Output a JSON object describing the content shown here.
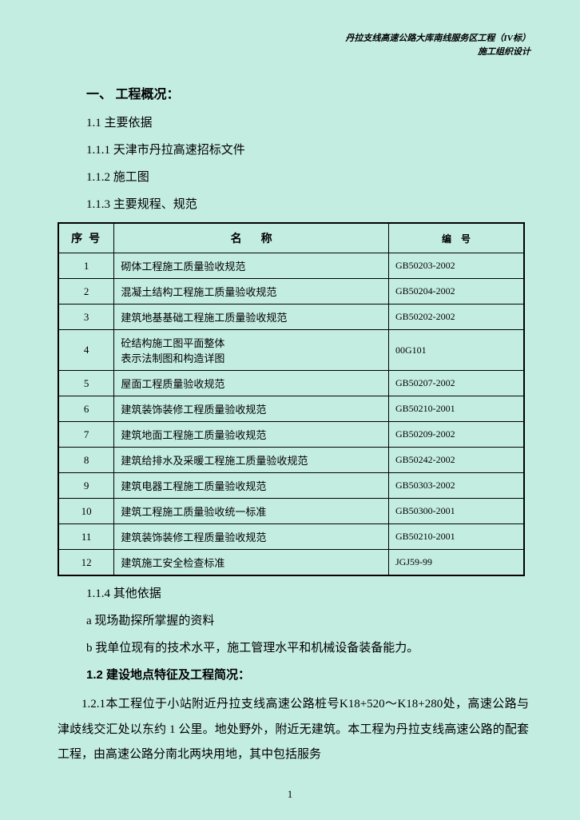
{
  "header": {
    "line1": "丹拉支线高速公路大库南线服务区工程（IV标）",
    "line2": "施工组织设计"
  },
  "sections": {
    "h1": "一、 工程概况：",
    "s1_1": "1.1  主要依据",
    "s1_1_1": "1.1.1 天津市丹拉高速招标文件",
    "s1_1_2": "1.1.2 施工图",
    "s1_1_3": "1.1.3 主要规程、规范",
    "s1_1_4": "1.1.4 其他依据",
    "s1_1_4a": "a   现场勘探所掌握的资料",
    "s1_1_4b": "b   我单位现有的技术水平，施工管理水平和机械设备装备能力。",
    "h2": "1.2 建设地点特征及工程简况：",
    "body": "1.2.1本工程位于小站附近丹拉支线高速公路桩号K18+520～K18+280处，高速公路与津歧线交汇处以东约 1 公里。地处野外，附近无建筑。本工程为丹拉支线高速公路的配套工程，由高速公路分南北两块用地，其中包括服务"
  },
  "table": {
    "headers": {
      "seq": "序号",
      "name": "名称",
      "code": "编号"
    },
    "rows": [
      {
        "seq": "1",
        "name": "砌体工程施工质量验收规范",
        "code": "GB50203-2002"
      },
      {
        "seq": "2",
        "name": "混凝土结构工程施工质量验收规范",
        "code": "GB50204-2002"
      },
      {
        "seq": "3",
        "name": "建筑地基基础工程施工质量验收规范",
        "code": "GB50202-2002"
      },
      {
        "seq": "4",
        "name": "砼结构施工图平面整体\n表示法制图和构造详图",
        "code": "00G101"
      },
      {
        "seq": "5",
        "name": "屋面工程质量验收规范",
        "code": "GB50207-2002"
      },
      {
        "seq": "6",
        "name": "建筑装饰装修工程质量验收规范",
        "code": "GB50210-2001"
      },
      {
        "seq": "7",
        "name": "建筑地面工程施工质量验收规范",
        "code": "GB50209-2002"
      },
      {
        "seq": "8",
        "name": "建筑给排水及采暖工程施工质量验收规范",
        "code": "GB50242-2002"
      },
      {
        "seq": "9",
        "name": "建筑电器工程施工质量验收规范",
        "code": "GB50303-2002"
      },
      {
        "seq": "10",
        "name": "建筑工程施工质量验收统一标准",
        "code": "GB50300-2001"
      },
      {
        "seq": "11",
        "name": "建筑装饰装修工程质量验收规范",
        "code": "GB50210-2001"
      },
      {
        "seq": "12",
        "name": "建筑施工安全检查标准",
        "code": "JGJ59-99"
      }
    ]
  },
  "page_number": "1"
}
